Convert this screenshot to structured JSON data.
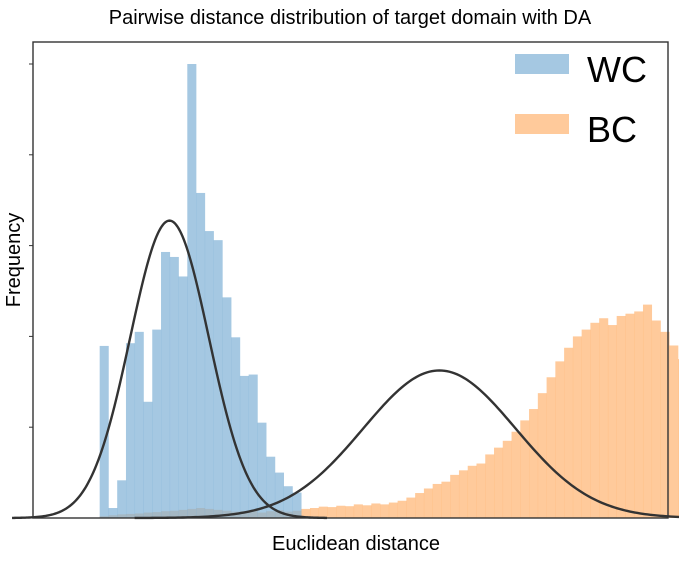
{
  "chart_data": {
    "type": "histogram",
    "title": "Pairwise distance distribution of target domain with DA",
    "xlabel": "Euclidean distance",
    "ylabel": "Frequency",
    "xlim": [
      0,
      100
    ],
    "ylim": [
      0,
      100
    ],
    "ticks_labeled": false,
    "grid": false,
    "legend": {
      "placement": "top-right",
      "entries": [
        "WC",
        "BC"
      ]
    },
    "series": [
      {
        "name": "WC",
        "color": "#7fb0d5",
        "opacity": 0.7,
        "bin_start": 10.5,
        "bin_width": 1.38,
        "values": [
          37.9,
          2.2,
          8.3,
          38.5,
          41.0,
          25.6,
          41.5,
          58.6,
          57.5,
          53.2,
          100.0,
          71.6,
          63.2,
          61.2,
          48.6,
          39.8,
          31.3,
          31.6,
          21.0,
          13.5,
          10.0,
          7.0,
          5.6
        ]
      },
      {
        "name": "BC",
        "color": "#ffb370",
        "opacity": 0.7,
        "bin_start": 10.5,
        "bin_width": 1.38,
        "values": [
          0.4,
          0.6,
          0.8,
          0.9,
          1.0,
          1.2,
          1.3,
          1.5,
          1.6,
          1.8,
          2.0,
          2.2,
          2.0,
          1.8,
          1.6,
          1.4,
          1.5,
          1.6,
          1.2,
          1.5,
          1.7,
          1.4,
          1.6,
          2.0,
          2.2,
          2.5,
          2.4,
          2.7,
          2.6,
          3.0,
          2.8,
          3.2,
          3.0,
          3.4,
          3.8,
          4.5,
          5.5,
          6.5,
          7.5,
          8.0,
          9.5,
          10.5,
          11.5,
          12.0,
          14.0,
          15.5,
          17.0,
          19.0,
          21.5,
          24.0,
          27.5,
          31.0,
          34.5,
          37.5,
          40.0,
          41.5,
          43.0,
          44.0,
          42.5,
          44.5,
          45.0,
          45.5,
          47.0,
          43.5,
          41.0,
          38.0,
          35.0,
          31.0,
          26.0,
          22.0,
          19.0,
          15.0,
          12.5,
          10.0,
          8.0,
          6.5,
          5.0,
          3.5,
          2.6,
          2.0,
          1.5,
          1.0,
          0.7,
          0.4,
          0.2
        ]
      }
    ],
    "fits": [
      {
        "series": "WC",
        "type": "gaussian",
        "mean": 21.5,
        "sd": 6.2,
        "peak": 65.5,
        "color": "#333333"
      },
      {
        "series": "BC",
        "type": "gaussian",
        "mean": 64.0,
        "sd": 12.0,
        "peak": 32.5,
        "color": "#333333"
      }
    ]
  }
}
